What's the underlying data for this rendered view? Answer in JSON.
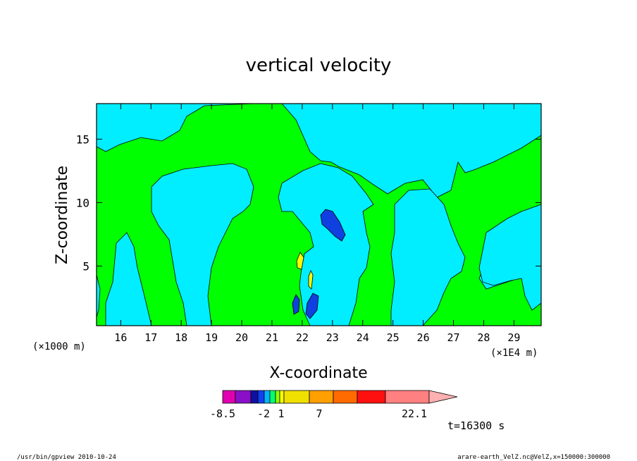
{
  "chart_data": {
    "type": "heatmap",
    "title": "vertical velocity",
    "xlabel": "X-coordinate",
    "ylabel": "Z-coordinate",
    "x_unit_left": "(×1000 m)",
    "x_unit_right": "(×1E4 m)",
    "xlim": [
      15.2,
      29.9
    ],
    "ylim": [
      0.3,
      17.8
    ],
    "x_ticks": [
      "16",
      "17",
      "18",
      "19",
      "20",
      "21",
      "22",
      "23",
      "24",
      "25",
      "26",
      "27",
      "28",
      "29"
    ],
    "y_ticks": [
      "5",
      "10",
      "15"
    ],
    "colorbar": {
      "labels": [
        "-8.5",
        "-2",
        "1",
        "7",
        "22.1"
      ],
      "colors": [
        "#e000b0",
        "#8a10c8",
        "#1010a0",
        "#1040f0",
        "#00b4ff",
        "#00ff70",
        "#90ff00",
        "#f8ff00",
        "#f0e000",
        "#ffa000",
        "#ff6a00",
        "#ff1010",
        "#ff8080",
        "#ffb0b0"
      ]
    },
    "time_label": "t=16300 s",
    "regions": [
      {
        "name": "cyan-top-left",
        "color": "#00eeff"
      },
      {
        "name": "green-band",
        "color": "#00ff00"
      },
      {
        "name": "cyan-middle",
        "color": "#00eeff"
      },
      {
        "name": "blue-cells",
        "color": "#1040e0"
      },
      {
        "name": "yellow-cells",
        "color": "#f8ff00"
      }
    ]
  },
  "footer": {
    "left": "/usr/bin/gpview   2010-10-24",
    "right": "arare-earth_VelZ.nc@VelZ,x=150000:300000"
  },
  "colors": {
    "cyan": "#00eeff",
    "green": "#00ff00",
    "blue": "#1040e0",
    "yellow": "#f8ff00",
    "frame": "#000000"
  }
}
